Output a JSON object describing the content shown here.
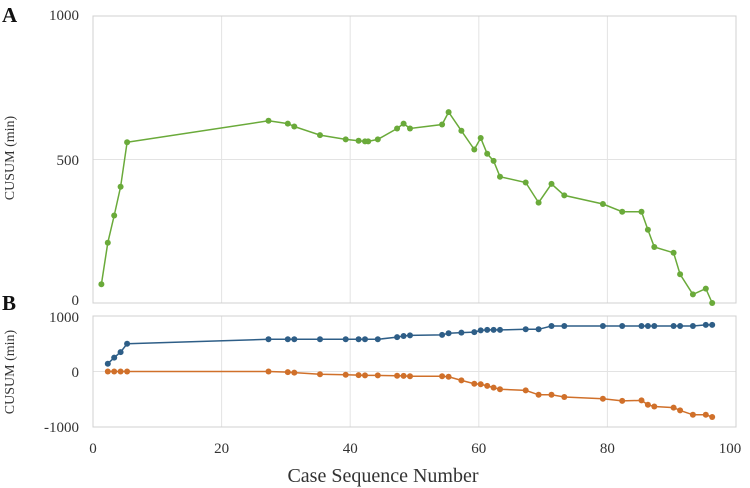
{
  "chart_data": [
    {
      "type": "line",
      "panel_label": "A",
      "ylabel": "CUSUM (min)",
      "xlim": [
        0,
        100
      ],
      "ylim": [
        0,
        1000
      ],
      "yticks": [
        "1000",
        "500",
        "0"
      ],
      "grid": true,
      "colors": {
        "series": "#6aaa3a"
      },
      "series": [
        {
          "x": [
            1.3,
            2.3,
            3.3,
            4.3,
            5.3,
            27.3,
            30.3,
            31.3,
            35.3,
            39.3,
            41.3,
            42.3,
            42.8,
            44.3,
            47.3,
            48.3,
            49.3,
            54.3,
            55.3,
            57.3,
            59.3,
            60.3,
            61.3,
            62.3,
            63.3,
            67.3,
            69.3,
            71.3,
            73.3,
            79.3,
            82.3,
            85.3,
            86.3,
            87.3,
            90.3,
            91.3,
            93.3,
            95.3,
            96.3
          ],
          "values": [
            65,
            210,
            305,
            405,
            560,
            635,
            625,
            615,
            585,
            570,
            565,
            563,
            563,
            570,
            608,
            625,
            608,
            622,
            665,
            600,
            535,
            575,
            520,
            495,
            440,
            420,
            350,
            415,
            375,
            345,
            318,
            318,
            255,
            195,
            175,
            100,
            30,
            50,
            0
          ]
        }
      ]
    },
    {
      "type": "line",
      "panel_label": "B",
      "ylabel": "CUSUM (min)",
      "xlabel": "Case Sequence Number",
      "xlim": [
        0,
        100
      ],
      "ylim": [
        -1000,
        1000
      ],
      "xticks": [
        "0",
        "20",
        "40",
        "60",
        "80",
        "100"
      ],
      "yticks": [
        "1000",
        "0",
        "-1000"
      ],
      "grid": true,
      "colors": {
        "upper": "#2e5e87",
        "lower": "#d0702a"
      },
      "series": [
        {
          "x": [
            2.3,
            3.3,
            4.3,
            5.3,
            27.3,
            30.3,
            31.3,
            35.3,
            39.3,
            41.3,
            42.3,
            44.3,
            47.3,
            48.3,
            49.3,
            54.3,
            55.3,
            57.3,
            59.3,
            60.3,
            61.3,
            62.3,
            63.3,
            67.3,
            69.3,
            71.3,
            73.3,
            79.3,
            82.3,
            85.3,
            86.3,
            87.3,
            90.3,
            91.3,
            93.3,
            95.3,
            96.3
          ],
          "values": [
            140,
            250,
            350,
            500,
            580,
            580,
            580,
            580,
            580,
            580,
            580,
            580,
            620,
            640,
            650,
            660,
            690,
            700,
            710,
            740,
            750,
            750,
            750,
            760,
            760,
            820,
            820,
            820,
            820,
            820,
            820,
            820,
            820,
            820,
            820,
            840,
            840
          ]
        },
        {
          "x": [
            2.3,
            3.3,
            4.3,
            5.3,
            27.3,
            30.3,
            31.3,
            35.3,
            39.3,
            41.3,
            42.3,
            44.3,
            47.3,
            48.3,
            49.3,
            54.3,
            55.3,
            57.3,
            59.3,
            60.3,
            61.3,
            62.3,
            63.3,
            67.3,
            69.3,
            71.3,
            73.3,
            79.3,
            82.3,
            85.3,
            86.3,
            87.3,
            90.3,
            91.3,
            93.3,
            95.3,
            96.3
          ],
          "values": [
            0,
            0,
            0,
            0,
            0,
            -10,
            -20,
            -50,
            -60,
            -65,
            -70,
            -70,
            -75,
            -80,
            -85,
            -85,
            -95,
            -160,
            -220,
            -230,
            -260,
            -290,
            -320,
            -340,
            -420,
            -420,
            -460,
            -490,
            -530,
            -520,
            -600,
            -630,
            -650,
            -700,
            -780,
            -780,
            -820
          ]
        }
      ]
    }
  ]
}
